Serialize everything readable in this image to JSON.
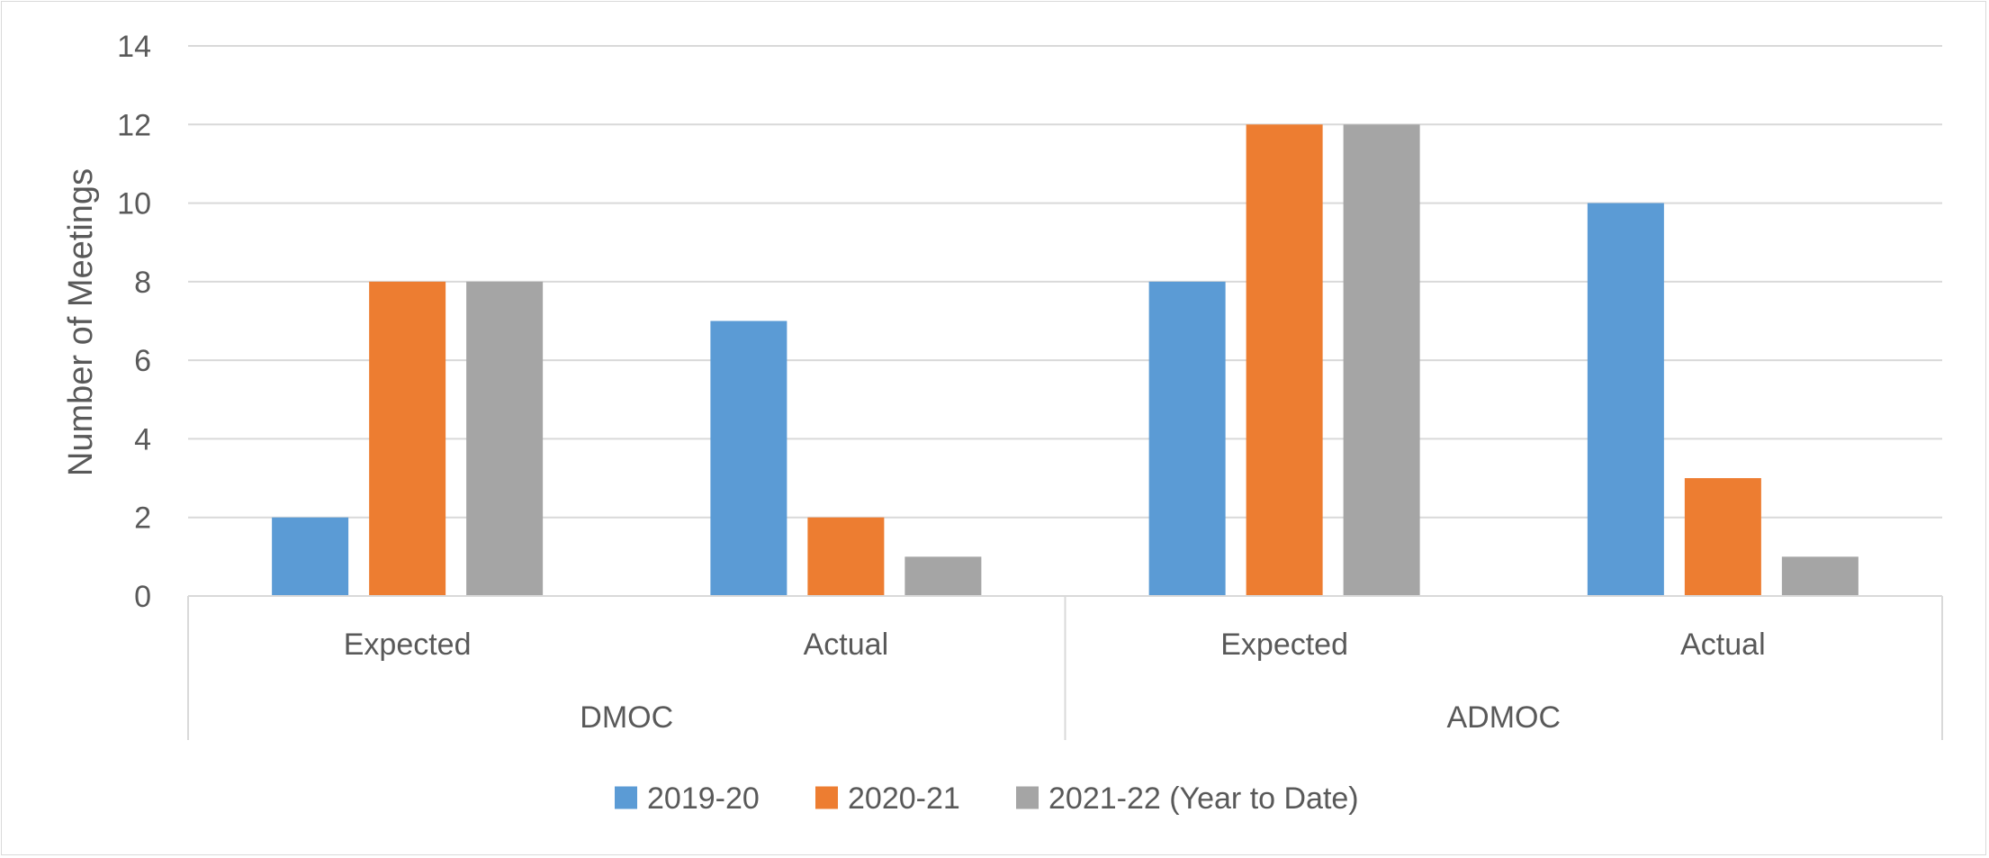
{
  "chart_data": {
    "type": "bar",
    "title": "",
    "ylabel": "Number of Meetings",
    "xlabel": "",
    "ylim": [
      0,
      14
    ],
    "yticks": [
      0,
      2,
      4,
      6,
      8,
      10,
      12,
      14
    ],
    "grid": true,
    "legend_position": "bottom",
    "groups": [
      {
        "label": "DMOC",
        "categories": [
          "Expected",
          "Actual"
        ]
      },
      {
        "label": "ADMOC",
        "categories": [
          "Expected",
          "Actual"
        ]
      }
    ],
    "series": [
      {
        "name": "2019-20",
        "color": "#5b9bd5",
        "values": [
          2,
          7,
          8,
          10
        ]
      },
      {
        "name": "2020-21",
        "color": "#ed7d31",
        "values": [
          8,
          2,
          12,
          3
        ]
      },
      {
        "name": "2021-22 (Year to Date)",
        "color": "#a5a5a5",
        "values": [
          8,
          1,
          12,
          1
        ]
      }
    ]
  }
}
